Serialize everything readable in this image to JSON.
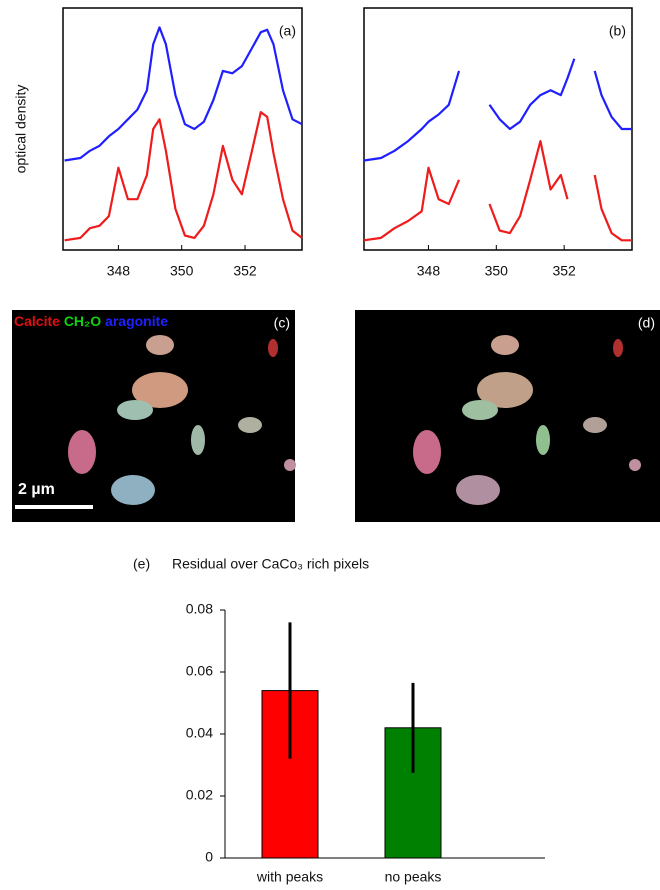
{
  "chart_data": [
    {
      "type": "line",
      "label": "(a)",
      "ylabel": "optical density",
      "x": [
        346.3,
        346.8,
        347.1,
        347.4,
        347.7,
        348.0,
        348.3,
        348.6,
        348.9,
        349.1,
        349.3,
        349.5,
        349.8,
        350.1,
        350.4,
        350.7,
        351.0,
        351.3,
        351.6,
        351.9,
        352.2,
        352.5,
        352.7,
        352.9,
        353.2,
        353.5,
        353.8
      ],
      "series": [
        {
          "color": "#1f1fff",
          "values": [
            0.37,
            0.38,
            0.41,
            0.43,
            0.47,
            0.5,
            0.54,
            0.58,
            0.66,
            0.85,
            0.92,
            0.85,
            0.64,
            0.52,
            0.5,
            0.53,
            0.62,
            0.74,
            0.73,
            0.76,
            0.83,
            0.9,
            0.91,
            0.85,
            0.66,
            0.54,
            0.52
          ]
        },
        {
          "color": "#ee1c1c",
          "values": [
            0.04,
            0.05,
            0.09,
            0.1,
            0.14,
            0.34,
            0.21,
            0.21,
            0.31,
            0.5,
            0.54,
            0.41,
            0.17,
            0.06,
            0.05,
            0.1,
            0.23,
            0.43,
            0.29,
            0.23,
            0.4,
            0.57,
            0.55,
            0.4,
            0.21,
            0.08,
            0.05
          ]
        }
      ],
      "xlim": [
        346.25,
        353.8
      ],
      "ylim": [
        0,
        1
      ],
      "xticks": [
        348,
        350,
        352
      ]
    },
    {
      "type": "line",
      "label": "(b)",
      "x": [
        346.1,
        346.6,
        347.0,
        347.4,
        347.8,
        348.0,
        348.3,
        348.6,
        348.9,
        349.3,
        349.8,
        350.1,
        350.4,
        350.7,
        351.0,
        351.3,
        351.6,
        351.9,
        352.1,
        352.3,
        352.6,
        352.9,
        353.1,
        353.4,
        353.7,
        354.0
      ],
      "series": [
        {
          "color": "#1f1fff",
          "values": [
            0.37,
            0.38,
            0.41,
            0.45,
            0.5,
            0.53,
            0.56,
            0.6,
            0.74,
            null,
            0.6,
            0.54,
            0.5,
            0.53,
            0.6,
            0.64,
            0.66,
            0.64,
            0.71,
            0.79,
            null,
            0.74,
            0.64,
            0.55,
            0.5,
            0.5
          ]
        },
        {
          "color": "#ee1c1c",
          "values": [
            0.04,
            0.05,
            0.09,
            0.12,
            0.16,
            0.34,
            0.21,
            0.19,
            0.29,
            null,
            0.19,
            0.08,
            0.07,
            0.14,
            0.29,
            0.45,
            0.25,
            0.31,
            0.21,
            null,
            null,
            0.31,
            0.17,
            0.07,
            0.04,
            0.04
          ]
        }
      ],
      "xlim": [
        346.1,
        354.0
      ],
      "ylim": [
        0,
        1
      ],
      "xticks": [
        348,
        350,
        352
      ]
    },
    {
      "type": "bar",
      "label": "(e)",
      "title": "Residual over CaCo₃ rich pixels",
      "categories": [
        "with peaks",
        "no peaks"
      ],
      "values": [
        0.054,
        0.042
      ],
      "errors": [
        0.022,
        0.0145
      ],
      "colors": [
        "#ff0000",
        "#008000"
      ],
      "ylim": [
        0,
        0.08
      ],
      "yticks": [
        0,
        0.02,
        0.04,
        0.06,
        0.08
      ]
    }
  ],
  "images": [
    {
      "label": "(c)",
      "legend": [
        {
          "text": "Calcite",
          "color": "#e01010"
        },
        {
          "text": "CH₂O",
          "color": "#10d010"
        },
        {
          "text": "aragonite",
          "color": "#2020ff"
        }
      ],
      "scale_bar": "2 µm"
    },
    {
      "label": "(d)"
    }
  ]
}
